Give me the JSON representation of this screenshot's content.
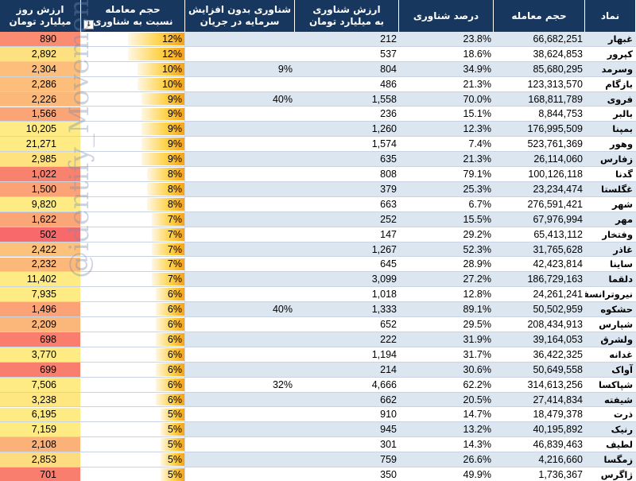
{
  "headers": {
    "name": "نماد",
    "volume": "حجم معامله",
    "float_pct": "درصد شناوری",
    "float_value": [
      "ارزش شناوری",
      "به میلیارد تومان"
    ],
    "no_cap_increase": [
      "شناوری بدون افزایش",
      "سرمایه در جریان"
    ],
    "ratio": [
      "حجم معامله",
      "نسبت به شناوری"
    ],
    "day_value": [
      "ارزش روز",
      "میلیارد تومان"
    ]
  },
  "watermark": "@identify_Movements",
  "colors": {
    "header_bg": "#17375e",
    "row_alt": "#dce6f1",
    "day_scale": [
      "#f8696b",
      "#fbaa77",
      "#ffeb84"
    ]
  },
  "rows": [
    {
      "name": "غبهار",
      "volume": "66,682,251",
      "float_pct": "23.8%",
      "float_value": "212",
      "no_cap": "",
      "ratio": "12%",
      "ratio_level": 1.0,
      "day_value": "890",
      "day_color": "#fa8c72"
    },
    {
      "name": "کپرور",
      "volume": "38,624,853",
      "float_pct": "18.6%",
      "float_value": "537",
      "no_cap": "",
      "ratio": "12%",
      "ratio_level": 1.0,
      "day_value": "2,892",
      "day_color": "#fde07f"
    },
    {
      "name": "وسرمد",
      "volume": "85,680,295",
      "float_pct": "34.9%",
      "float_value": "804",
      "no_cap": "9%",
      "ratio": "10%",
      "ratio_level": 0.83,
      "day_value": "2,304",
      "day_color": "#fcbe7a"
    },
    {
      "name": "بازگام",
      "volume": "123,313,570",
      "float_pct": "21.3%",
      "float_value": "486",
      "no_cap": "",
      "ratio": "10%",
      "ratio_level": 0.83,
      "day_value": "2,286",
      "day_color": "#fcbe7a"
    },
    {
      "name": "فروی",
      "volume": "168,811,789",
      "float_pct": "70.0%",
      "float_value": "1,558",
      "no_cap": "40%",
      "ratio": "9%",
      "ratio_level": 0.75,
      "day_value": "2,226",
      "day_color": "#fbb879"
    },
    {
      "name": "بالبر",
      "volume": "8,844,753",
      "float_pct": "15.1%",
      "float_value": "236",
      "no_cap": "",
      "ratio": "9%",
      "ratio_level": 0.75,
      "day_value": "1,566",
      "day_color": "#fba476"
    },
    {
      "name": "بمپنا",
      "volume": "176,995,509",
      "float_pct": "12.3%",
      "float_value": "1,260",
      "no_cap": "",
      "ratio": "9%",
      "ratio_level": 0.75,
      "day_value": "10,205",
      "day_color": "#ffeb84"
    },
    {
      "name": "وهور",
      "volume": "523,761,369",
      "float_pct": "7.4%",
      "float_value": "1,574",
      "no_cap": "",
      "ratio": "9%",
      "ratio_level": 0.75,
      "day_value": "21,271",
      "day_color": "#ffeb84"
    },
    {
      "name": "زفارس",
      "volume": "26,114,060",
      "float_pct": "21.3%",
      "float_value": "635",
      "no_cap": "",
      "ratio": "9%",
      "ratio_level": 0.75,
      "day_value": "2,985",
      "day_color": "#fde27f"
    },
    {
      "name": "گدنا",
      "volume": "100,126,118",
      "float_pct": "79.1%",
      "float_value": "808",
      "no_cap": "",
      "ratio": "8%",
      "ratio_level": 0.66,
      "day_value": "1,022",
      "day_color": "#f9826f"
    },
    {
      "name": "غگلستا",
      "volume": "23,234,474",
      "float_pct": "25.3%",
      "float_value": "379",
      "no_cap": "",
      "ratio": "8%",
      "ratio_level": 0.66,
      "day_value": "1,500",
      "day_color": "#fba276"
    },
    {
      "name": "شهر",
      "volume": "276,591,421",
      "float_pct": "6.7%",
      "float_value": "663",
      "no_cap": "",
      "ratio": "8%",
      "ratio_level": 0.66,
      "day_value": "9,820",
      "day_color": "#ffeb84"
    },
    {
      "name": "مهر",
      "volume": "67,976,994",
      "float_pct": "15.5%",
      "float_value": "252",
      "no_cap": "",
      "ratio": "7%",
      "ratio_level": 0.58,
      "day_value": "1,622",
      "day_color": "#fba676"
    },
    {
      "name": "وفتخار",
      "volume": "65,413,112",
      "float_pct": "29.2%",
      "float_value": "147",
      "no_cap": "",
      "ratio": "7%",
      "ratio_level": 0.58,
      "day_value": "502",
      "day_color": "#f8696b"
    },
    {
      "name": "غاذر",
      "volume": "31,765,628",
      "float_pct": "52.3%",
      "float_value": "1,267",
      "no_cap": "",
      "ratio": "7%",
      "ratio_level": 0.58,
      "day_value": "2,422",
      "day_color": "#fcc27b"
    },
    {
      "name": "ساینا",
      "volume": "42,423,814",
      "float_pct": "28.9%",
      "float_value": "645",
      "no_cap": "",
      "ratio": "7%",
      "ratio_level": 0.58,
      "day_value": "2,232",
      "day_color": "#fbb879"
    },
    {
      "name": "دلقما",
      "volume": "186,729,163",
      "float_pct": "27.2%",
      "float_value": "3,099",
      "no_cap": "",
      "ratio": "7%",
      "ratio_level": 0.58,
      "day_value": "11,402",
      "day_color": "#ffeb84"
    },
    {
      "name": "نیروترانسفو",
      "volume": "24,261,241",
      "float_pct": "12.8%",
      "float_value": "1,018",
      "no_cap": "",
      "ratio": "6%",
      "ratio_level": 0.5,
      "day_value": "7,935",
      "day_color": "#ffeb84"
    },
    {
      "name": "حشکوه",
      "volume": "50,502,959",
      "float_pct": "89.1%",
      "float_value": "1,333",
      "no_cap": "40%",
      "ratio": "6%",
      "ratio_level": 0.5,
      "day_value": "1,496",
      "day_color": "#fba276"
    },
    {
      "name": "شپارس",
      "volume": "208,434,913",
      "float_pct": "29.5%",
      "float_value": "652",
      "no_cap": "",
      "ratio": "6%",
      "ratio_level": 0.5,
      "day_value": "2,209",
      "day_color": "#fbb679"
    },
    {
      "name": "ولشرق",
      "volume": "39,164,053",
      "float_pct": "31.9%",
      "float_value": "222",
      "no_cap": "",
      "ratio": "6%",
      "ratio_level": 0.5,
      "day_value": "698",
      "day_color": "#f97e6e"
    },
    {
      "name": "غدانه",
      "volume": "36,422,325",
      "float_pct": "31.7%",
      "float_value": "1,194",
      "no_cap": "",
      "ratio": "6%",
      "ratio_level": 0.5,
      "day_value": "3,770",
      "day_color": "#feeb83"
    },
    {
      "name": "آواک",
      "volume": "50,649,558",
      "float_pct": "30.6%",
      "float_value": "214",
      "no_cap": "",
      "ratio": "6%",
      "ratio_level": 0.5,
      "day_value": "699",
      "day_color": "#f97e6e"
    },
    {
      "name": "شپاکسا",
      "volume": "314,613,256",
      "float_pct": "62.2%",
      "float_value": "4,666",
      "no_cap": "32%",
      "ratio": "6%",
      "ratio_level": 0.5,
      "day_value": "7,506",
      "day_color": "#ffeb84"
    },
    {
      "name": "شیفته",
      "volume": "27,414,834",
      "float_pct": "20.5%",
      "float_value": "662",
      "no_cap": "",
      "ratio": "6%",
      "ratio_level": 0.5,
      "day_value": "3,238",
      "day_color": "#fee781"
    },
    {
      "name": "ذرت",
      "volume": "18,479,378",
      "float_pct": "14.7%",
      "float_value": "910",
      "no_cap": "",
      "ratio": "5%",
      "ratio_level": 0.42,
      "day_value": "6,195",
      "day_color": "#ffeb84"
    },
    {
      "name": "رنیک",
      "volume": "40,195,892",
      "float_pct": "13.2%",
      "float_value": "945",
      "no_cap": "",
      "ratio": "5%",
      "ratio_level": 0.42,
      "day_value": "7,159",
      "day_color": "#ffeb84"
    },
    {
      "name": "لطیف",
      "volume": "46,839,463",
      "float_pct": "14.3%",
      "float_value": "301",
      "no_cap": "",
      "ratio": "5%",
      "ratio_level": 0.42,
      "day_value": "2,108",
      "day_color": "#fbb278"
    },
    {
      "name": "زمگسا",
      "volume": "4,216,660",
      "float_pct": "26.6%",
      "float_value": "759",
      "no_cap": "",
      "ratio": "5%",
      "ratio_level": 0.42,
      "day_value": "2,853",
      "day_color": "#fddc7f"
    },
    {
      "name": "ژاگرس",
      "volume": "1,736,367",
      "float_pct": "49.9%",
      "float_value": "350",
      "no_cap": "",
      "ratio": "5%",
      "ratio_level": 0.42,
      "day_value": "701",
      "day_color": "#f97e6e"
    }
  ]
}
